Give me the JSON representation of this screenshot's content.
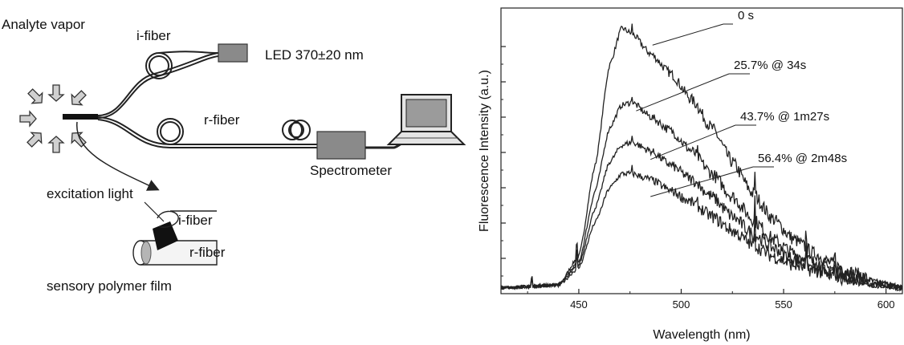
{
  "schematic": {
    "analyte_label": "Analyte vapor",
    "ifiber_label": "i-fiber",
    "led_label": "LED 370±20 nm",
    "rfiber_label": "r-fiber",
    "spectrometer_label": "Spectrometer",
    "excitation_label": "excitation light",
    "inset_ifiber_label": "i-fiber",
    "inset_rfiber_label": "r-fiber",
    "film_label": "sensory polymer film"
  },
  "chart_data": {
    "type": "line",
    "title": "",
    "xlabel": "Wavelength (nm)",
    "ylabel": "Fluorescence Intensity (a.u.)",
    "xlim": [
      412,
      608
    ],
    "xticks": [
      450,
      500,
      550,
      600
    ],
    "yticks_labeled": false,
    "grid": false,
    "series_color": "#222222",
    "series": [
      {
        "name": "0 s",
        "points": [
          [
            412,
            0.02
          ],
          [
            440,
            0.03
          ],
          [
            450,
            0.13
          ],
          [
            458,
            0.45
          ],
          [
            465,
            0.8
          ],
          [
            471,
            0.93
          ],
          [
            476,
            0.91
          ],
          [
            485,
            0.84
          ],
          [
            495,
            0.77
          ],
          [
            505,
            0.68
          ],
          [
            515,
            0.58
          ],
          [
            525,
            0.46
          ],
          [
            535,
            0.35
          ],
          [
            545,
            0.26
          ],
          [
            555,
            0.19
          ],
          [
            565,
            0.14
          ],
          [
            575,
            0.1
          ],
          [
            585,
            0.07
          ],
          [
            595,
            0.04
          ],
          [
            608,
            0.02
          ]
        ]
      },
      {
        "name": "25.7% @ 34s",
        "points": [
          [
            412,
            0.02
          ],
          [
            440,
            0.03
          ],
          [
            450,
            0.11
          ],
          [
            458,
            0.36
          ],
          [
            465,
            0.58
          ],
          [
            471,
            0.66
          ],
          [
            476,
            0.67
          ],
          [
            485,
            0.62
          ],
          [
            495,
            0.57
          ],
          [
            505,
            0.5
          ],
          [
            515,
            0.42
          ],
          [
            525,
            0.34
          ],
          [
            535,
            0.26
          ],
          [
            545,
            0.19
          ],
          [
            555,
            0.14
          ],
          [
            565,
            0.11
          ],
          [
            575,
            0.08
          ],
          [
            585,
            0.06
          ],
          [
            595,
            0.04
          ],
          [
            608,
            0.02
          ]
        ]
      },
      {
        "name": "43.7% @ 1m27s",
        "points": [
          [
            412,
            0.02
          ],
          [
            440,
            0.03
          ],
          [
            450,
            0.1
          ],
          [
            458,
            0.3
          ],
          [
            465,
            0.46
          ],
          [
            471,
            0.52
          ],
          [
            476,
            0.53
          ],
          [
            485,
            0.5
          ],
          [
            495,
            0.45
          ],
          [
            505,
            0.4
          ],
          [
            515,
            0.34
          ],
          [
            525,
            0.27
          ],
          [
            535,
            0.21
          ],
          [
            545,
            0.16
          ],
          [
            555,
            0.12
          ],
          [
            565,
            0.09
          ],
          [
            575,
            0.07
          ],
          [
            585,
            0.05
          ],
          [
            595,
            0.03
          ],
          [
            608,
            0.02
          ]
        ]
      },
      {
        "name": "56.4% @ 2m48s",
        "points": [
          [
            412,
            0.02
          ],
          [
            440,
            0.03
          ],
          [
            450,
            0.09
          ],
          [
            458,
            0.25
          ],
          [
            465,
            0.37
          ],
          [
            471,
            0.42
          ],
          [
            476,
            0.42
          ],
          [
            485,
            0.4
          ],
          [
            495,
            0.36
          ],
          [
            505,
            0.32
          ],
          [
            515,
            0.27
          ],
          [
            525,
            0.22
          ],
          [
            535,
            0.17
          ],
          [
            545,
            0.13
          ],
          [
            555,
            0.1
          ],
          [
            565,
            0.08
          ],
          [
            575,
            0.06
          ],
          [
            585,
            0.04
          ],
          [
            595,
            0.03
          ],
          [
            608,
            0.02
          ]
        ]
      }
    ],
    "annotations": [
      "0 s",
      "25.7% @ 34s",
      "43.7% @ 1m27s",
      "56.4% @ 2m48s"
    ]
  }
}
